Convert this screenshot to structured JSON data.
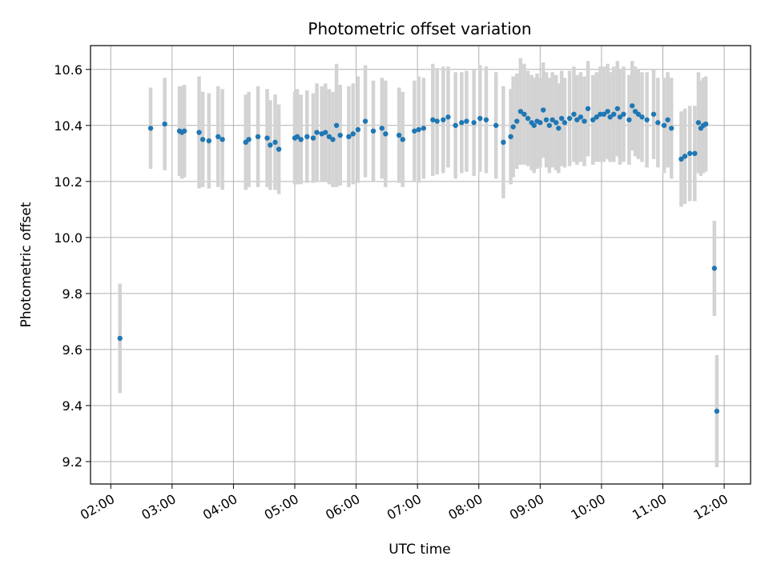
{
  "chart_data": {
    "type": "scatter",
    "title": "Photometric offset variation",
    "xlabel": "UTC time",
    "ylabel": "Photometric offset",
    "xlim_hours": [
      1.67,
      12.43
    ],
    "ylim": [
      9.12,
      10.685
    ],
    "grid": true,
    "x_ticks": [
      {
        "value": 2,
        "label": "02:00"
      },
      {
        "value": 3,
        "label": "03:00"
      },
      {
        "value": 4,
        "label": "04:00"
      },
      {
        "value": 5,
        "label": "05:00"
      },
      {
        "value": 6,
        "label": "06:00"
      },
      {
        "value": 7,
        "label": "07:00"
      },
      {
        "value": 8,
        "label": "08:00"
      },
      {
        "value": 9,
        "label": "09:00"
      },
      {
        "value": 10,
        "label": "10:00"
      },
      {
        "value": 11,
        "label": "11:00"
      },
      {
        "value": 12,
        "label": "12:00"
      }
    ],
    "y_ticks": [
      {
        "value": 9.2,
        "label": "9.2"
      },
      {
        "value": 9.4,
        "label": "9.4"
      },
      {
        "value": 9.6,
        "label": "9.6"
      },
      {
        "value": 9.8,
        "label": "9.8"
      },
      {
        "value": 10.0,
        "label": "10.0"
      },
      {
        "value": 10.2,
        "label": "10.2"
      },
      {
        "value": 10.4,
        "label": "10.4"
      },
      {
        "value": 10.6,
        "label": "10.6"
      }
    ],
    "colors": {
      "point": "#1f77b4",
      "errorbar": "#d3d3d3",
      "grid": "#b0b0b0",
      "axis": "#000000"
    },
    "series": [
      {
        "name": "Photometric offset",
        "x": [
          2.15,
          2.65,
          2.88,
          3.12,
          3.16,
          3.2,
          3.44,
          3.5,
          3.6,
          3.75,
          3.82,
          4.2,
          4.25,
          4.4,
          4.55,
          4.6,
          4.68,
          4.74,
          5.0,
          5.04,
          5.1,
          5.2,
          5.3,
          5.36,
          5.44,
          5.5,
          5.56,
          5.62,
          5.68,
          5.74,
          5.88,
          5.95,
          6.03,
          6.15,
          6.28,
          6.42,
          6.48,
          6.7,
          6.76,
          6.95,
          7.02,
          7.1,
          7.25,
          7.32,
          7.42,
          7.5,
          7.62,
          7.72,
          7.8,
          7.92,
          8.02,
          8.12,
          8.28,
          8.4,
          8.52,
          8.56,
          8.62,
          8.68,
          8.74,
          8.8,
          8.86,
          8.9,
          8.95,
          9.0,
          9.05,
          9.1,
          9.15,
          9.2,
          9.26,
          9.3,
          9.35,
          9.4,
          9.48,
          9.55,
          9.6,
          9.66,
          9.72,
          9.78,
          9.86,
          9.92,
          9.98,
          10.04,
          10.1,
          10.14,
          10.2,
          10.26,
          10.3,
          10.36,
          10.45,
          10.5,
          10.55,
          10.6,
          10.66,
          10.74,
          10.85,
          10.92,
          11.02,
          11.08,
          11.14,
          11.3,
          11.36,
          11.44,
          11.52,
          11.58,
          11.62,
          11.66,
          11.7,
          11.84,
          11.88
        ],
        "y": [
          9.64,
          10.39,
          10.405,
          10.38,
          10.375,
          10.38,
          10.375,
          10.35,
          10.345,
          10.36,
          10.35,
          10.34,
          10.35,
          10.36,
          10.355,
          10.33,
          10.34,
          10.315,
          10.355,
          10.36,
          10.35,
          10.36,
          10.355,
          10.375,
          10.37,
          10.375,
          10.36,
          10.35,
          10.4,
          10.365,
          10.36,
          10.37,
          10.385,
          10.415,
          10.38,
          10.39,
          10.37,
          10.365,
          10.35,
          10.38,
          10.385,
          10.39,
          10.42,
          10.415,
          10.42,
          10.43,
          10.4,
          10.41,
          10.415,
          10.41,
          10.425,
          10.42,
          10.4,
          10.34,
          10.36,
          10.395,
          10.415,
          10.45,
          10.44,
          10.425,
          10.41,
          10.4,
          10.415,
          10.41,
          10.455,
          10.42,
          10.4,
          10.42,
          10.41,
          10.39,
          10.425,
          10.41,
          10.425,
          10.44,
          10.42,
          10.43,
          10.415,
          10.46,
          10.42,
          10.43,
          10.44,
          10.44,
          10.45,
          10.43,
          10.44,
          10.46,
          10.43,
          10.44,
          10.42,
          10.47,
          10.45,
          10.44,
          10.43,
          10.42,
          10.44,
          10.41,
          10.4,
          10.42,
          10.39,
          10.28,
          10.29,
          10.3,
          10.3,
          10.41,
          10.39,
          10.4,
          10.405,
          9.89,
          9.38
        ],
        "err": [
          0.195,
          0.145,
          0.165,
          0.16,
          0.165,
          0.165,
          0.2,
          0.17,
          0.17,
          0.18,
          0.18,
          0.17,
          0.17,
          0.18,
          0.175,
          0.16,
          0.17,
          0.16,
          0.165,
          0.17,
          0.16,
          0.165,
          0.16,
          0.175,
          0.17,
          0.175,
          0.17,
          0.17,
          0.22,
          0.18,
          0.18,
          0.18,
          0.19,
          0.2,
          0.18,
          0.18,
          0.19,
          0.17,
          0.17,
          0.18,
          0.19,
          0.18,
          0.2,
          0.19,
          0.19,
          0.18,
          0.19,
          0.18,
          0.18,
          0.19,
          0.19,
          0.19,
          0.19,
          0.2,
          0.17,
          0.18,
          0.17,
          0.19,
          0.18,
          0.17,
          0.17,
          0.17,
          0.17,
          0.16,
          0.17,
          0.17,
          0.17,
          0.17,
          0.17,
          0.16,
          0.17,
          0.16,
          0.17,
          0.17,
          0.16,
          0.16,
          0.16,
          0.17,
          0.16,
          0.16,
          0.17,
          0.17,
          0.17,
          0.16,
          0.17,
          0.17,
          0.17,
          0.17,
          0.16,
          0.16,
          0.16,
          0.16,
          0.16,
          0.17,
          0.16,
          0.16,
          0.17,
          0.17,
          0.18,
          0.17,
          0.17,
          0.17,
          0.17,
          0.18,
          0.17,
          0.17,
          0.17,
          0.17,
          0.2
        ]
      }
    ]
  }
}
